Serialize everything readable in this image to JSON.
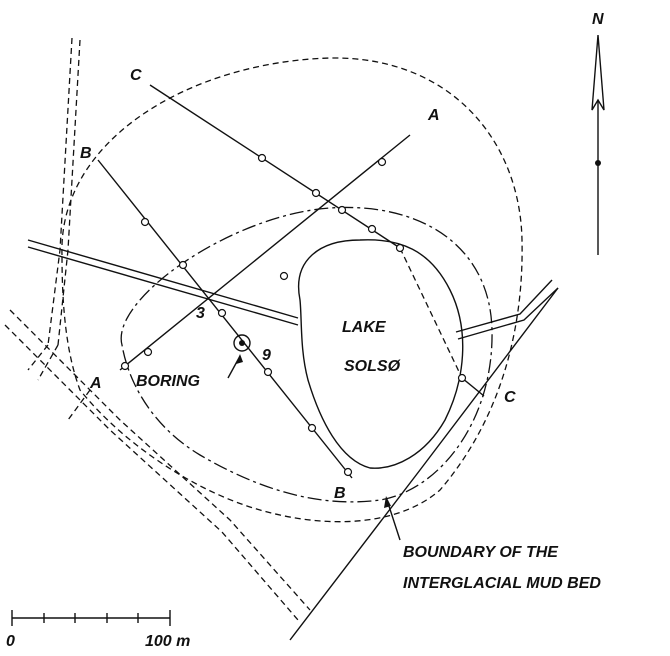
{
  "north": "N",
  "labels": {
    "c_top": "C",
    "a_top": "A",
    "b_top": "B",
    "point_3": "3",
    "lake_1": "LAKE",
    "lake_2": "SOLSØ",
    "point_9": "9",
    "boring": "BORING",
    "a_left": "A",
    "c_right": "C",
    "b_bottom": "B"
  },
  "boundary_note": [
    "BOUNDARY OF THE",
    "INTERGLACIAL MUD BED"
  ],
  "scale": {
    "start": "0",
    "end": "100 m"
  }
}
